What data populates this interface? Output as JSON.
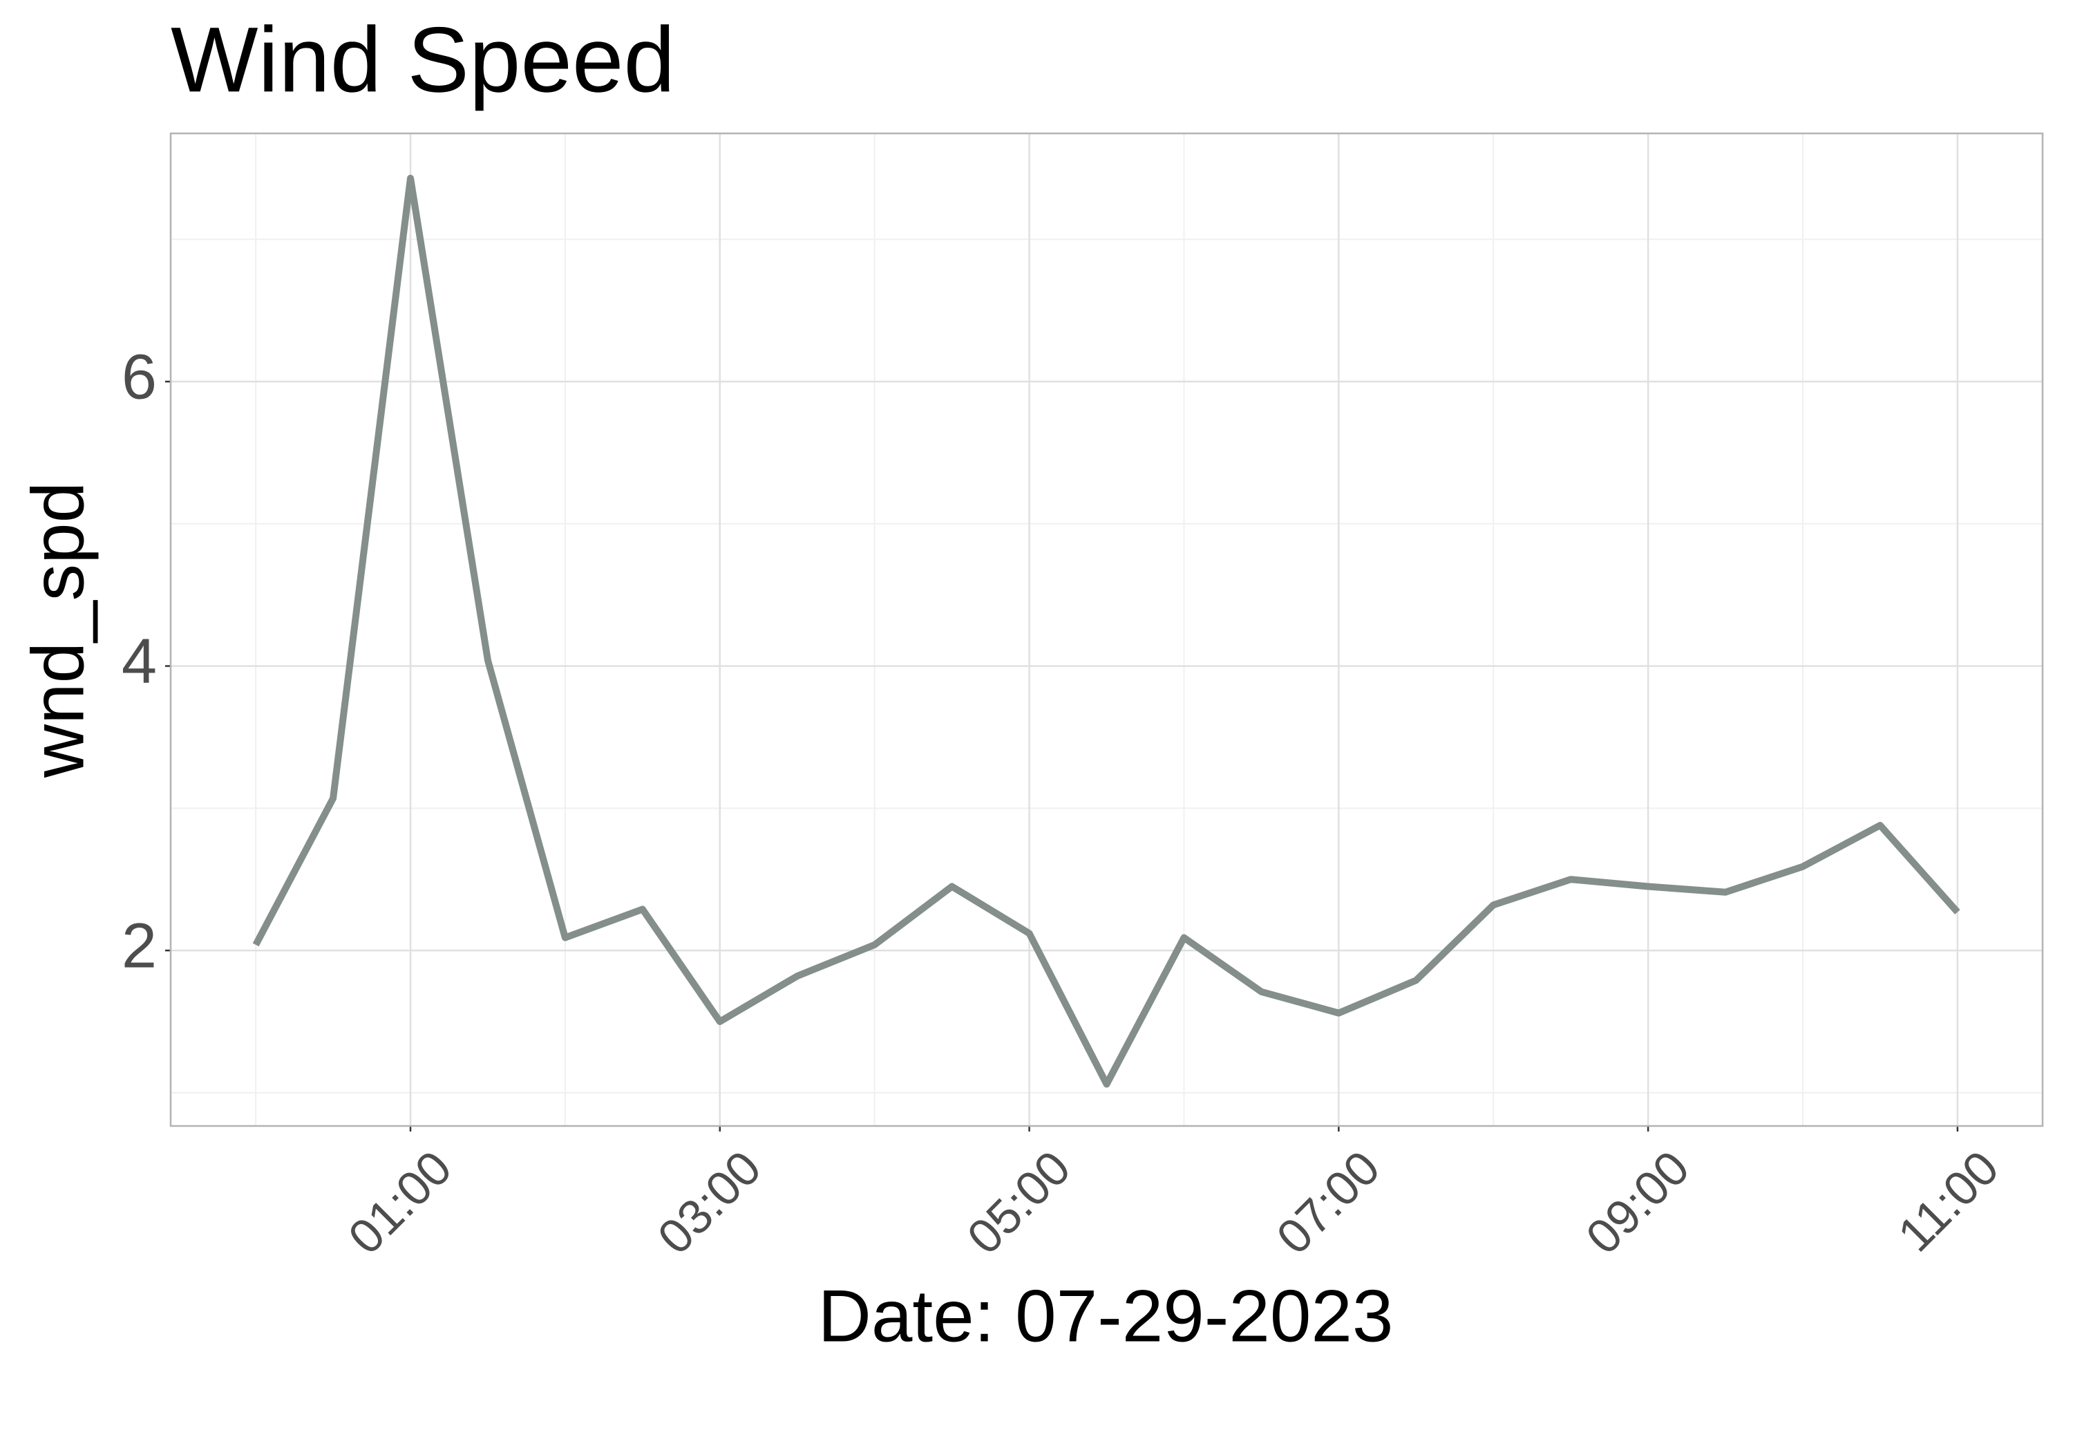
{
  "chart_data": {
    "type": "line",
    "title": "Wind Speed",
    "x_label": "Date: 07-29-2023",
    "y_label": "wnd_spd",
    "x": [
      0,
      0.5,
      1,
      1.5,
      2,
      2.5,
      3,
      3.5,
      4,
      4.5,
      5,
      5.5,
      6,
      6.5,
      7,
      7.5,
      8,
      8.5,
      9,
      9.5,
      10,
      10.5,
      11
    ],
    "series": [
      {
        "name": "wnd_spd",
        "color": "#848e8b",
        "values": [
          2.04,
          3.07,
          7.43,
          4.04,
          2.09,
          2.29,
          1.5,
          1.82,
          2.04,
          2.45,
          2.12,
          1.06,
          2.09,
          1.71,
          1.56,
          1.79,
          2.32,
          2.5,
          2.45,
          2.41,
          2.59,
          2.88,
          2.27
        ]
      }
    ],
    "xlim": [
      -0.55,
      11.55
    ],
    "ylim": [
      0.766,
      7.745
    ],
    "xticks": [
      {
        "value": 1,
        "label": "01:00"
      },
      {
        "value": 3,
        "label": "03:00"
      },
      {
        "value": 5,
        "label": "05:00"
      },
      {
        "value": 7,
        "label": "07:00"
      },
      {
        "value": 9,
        "label": "09:00"
      },
      {
        "value": 11,
        "label": "11:00"
      }
    ],
    "yticks": [
      2,
      4,
      6
    ],
    "xminor": [
      0,
      2,
      4,
      6,
      8,
      10
    ],
    "yminor": [
      1,
      3,
      5,
      7
    ],
    "grid": true
  }
}
